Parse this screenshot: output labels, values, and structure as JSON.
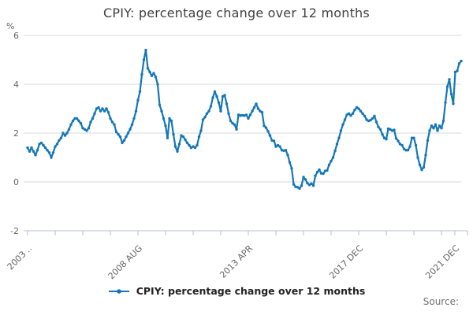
{
  "header": {
    "title": "CPIY: percentage change over 12 months"
  },
  "y_axis": {
    "unit_label": "%"
  },
  "legend": {
    "label": "CPIY: percentage change over 12 months"
  },
  "footer": {
    "source_label": "Source:"
  },
  "colors": {
    "line": "#1577b8",
    "grid": "#d9d9d9",
    "axis": "#b3bfd4",
    "tick_text": "#666666",
    "title_text": "#414042",
    "legend_text": "#222222",
    "source_text": "#707070"
  },
  "chart_data": {
    "type": "line",
    "title": "CPIY: percentage change over 12 months",
    "xlabel": "",
    "ylabel": "%",
    "ylim": [
      -2,
      6
    ],
    "yticks": [
      6,
      4,
      2,
      0,
      -2
    ],
    "x_tick_labels": [
      "2003 ..",
      "2008 AUG",
      "2013 APR",
      "2017 DEC",
      "2021 DEC"
    ],
    "grid": true,
    "markers": true,
    "legend_position": "bottom",
    "frequency": "monthly",
    "series": [
      {
        "name": "CPIY: percentage change over 12 months",
        "values": [
          1.4,
          1.25,
          1.4,
          1.25,
          1.1,
          1.3,
          1.55,
          1.6,
          1.5,
          1.4,
          1.3,
          1.2,
          1.0,
          1.2,
          1.45,
          1.55,
          1.7,
          1.8,
          2.0,
          1.9,
          2.0,
          2.15,
          2.35,
          2.5,
          2.6,
          2.6,
          2.5,
          2.4,
          2.2,
          2.15,
          2.1,
          2.2,
          2.45,
          2.6,
          2.8,
          3.0,
          3.05,
          2.9,
          3.0,
          2.9,
          3.0,
          2.85,
          2.6,
          2.45,
          2.35,
          2.05,
          1.95,
          1.85,
          1.6,
          1.7,
          1.85,
          2.0,
          2.15,
          2.35,
          2.6,
          2.9,
          3.35,
          3.7,
          4.4,
          5.0,
          5.4,
          4.65,
          4.5,
          4.35,
          4.45,
          4.3,
          4.0,
          3.15,
          2.9,
          2.6,
          2.3,
          1.8,
          2.6,
          2.5,
          1.95,
          1.45,
          1.25,
          1.55,
          1.9,
          1.85,
          1.73,
          1.6,
          1.5,
          1.4,
          1.45,
          1.4,
          1.5,
          1.85,
          2.1,
          2.55,
          2.65,
          2.8,
          2.9,
          3.1,
          3.45,
          3.7,
          3.5,
          3.25,
          2.9,
          3.5,
          3.55,
          3.2,
          2.8,
          2.5,
          2.4,
          2.35,
          2.15,
          2.75,
          2.72,
          2.73,
          2.72,
          2.75,
          2.6,
          2.75,
          2.9,
          3.05,
          3.2,
          3.0,
          2.9,
          2.85,
          2.3,
          2.22,
          2.07,
          1.9,
          1.7,
          1.68,
          1.45,
          1.5,
          1.45,
          1.3,
          1.28,
          1.3,
          1.1,
          0.8,
          0.55,
          -0.1,
          -0.2,
          -0.22,
          -0.27,
          -0.15,
          0.2,
          0.1,
          -0.05,
          -0.12,
          -0.07,
          -0.15,
          0.25,
          0.4,
          0.5,
          0.35,
          0.34,
          0.45,
          0.47,
          0.7,
          0.85,
          1.0,
          1.27,
          1.55,
          1.8,
          2.1,
          2.35,
          2.55,
          2.75,
          2.8,
          2.72,
          2.8,
          2.95,
          3.05,
          3.0,
          2.9,
          2.8,
          2.7,
          2.55,
          2.5,
          2.53,
          2.6,
          2.7,
          2.45,
          2.25,
          2.15,
          1.95,
          1.8,
          1.75,
          2.18,
          2.15,
          2.1,
          2.13,
          1.78,
          1.68,
          1.55,
          1.5,
          1.35,
          1.3,
          1.3,
          1.45,
          1.8,
          1.8,
          1.5,
          1.0,
          0.7,
          0.5,
          0.6,
          1.1,
          1.7,
          2.1,
          2.3,
          2.2,
          2.35,
          2.1,
          2.3,
          2.2,
          2.5,
          3.25,
          3.9,
          4.2,
          3.6,
          3.2,
          4.5,
          4.55,
          4.85,
          4.95
        ]
      }
    ]
  }
}
